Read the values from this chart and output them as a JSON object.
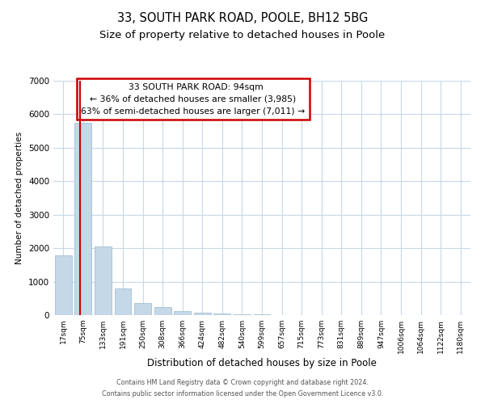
{
  "title_line1": "33, SOUTH PARK ROAD, POOLE, BH12 5BG",
  "title_line2": "Size of property relative to detached houses in Poole",
  "xlabel": "Distribution of detached houses by size in Poole",
  "ylabel": "Number of detached properties",
  "bin_labels": [
    "17sqm",
    "75sqm",
    "133sqm",
    "191sqm",
    "250sqm",
    "308sqm",
    "366sqm",
    "424sqm",
    "482sqm",
    "540sqm",
    "599sqm",
    "657sqm",
    "715sqm",
    "773sqm",
    "831sqm",
    "889sqm",
    "947sqm",
    "1006sqm",
    "1064sqm",
    "1122sqm",
    "1180sqm"
  ],
  "bar_values": [
    1780,
    5750,
    2050,
    800,
    370,
    240,
    120,
    80,
    55,
    35,
    20,
    10,
    5,
    0,
    0,
    0,
    0,
    0,
    0,
    0,
    0
  ],
  "bar_color": "#c5d8e8",
  "bar_edge_color": "#9ab8cc",
  "property_sqm": 94,
  "annotation_text_line1": "33 SOUTH PARK ROAD: 94sqm",
  "annotation_text_line2": "← 36% of detached houses are smaller (3,985)",
  "annotation_text_line3": "63% of semi-detached houses are larger (7,011) →",
  "annotation_box_color": "#ffffff",
  "annotation_box_edge": "#cc0000",
  "red_line_color": "#cc0000",
  "ylim": [
    0,
    7000
  ],
  "yticks": [
    0,
    1000,
    2000,
    3000,
    4000,
    5000,
    6000,
    7000
  ],
  "footnote_line1": "Contains HM Land Registry data © Crown copyright and database right 2024.",
  "footnote_line2": "Contains public sector information licensed under the Open Government Licence v3.0.",
  "background_color": "#ffffff",
  "grid_color": "#c8d8e8",
  "title_fontsize": 10.5,
  "subtitle_fontsize": 9.5
}
